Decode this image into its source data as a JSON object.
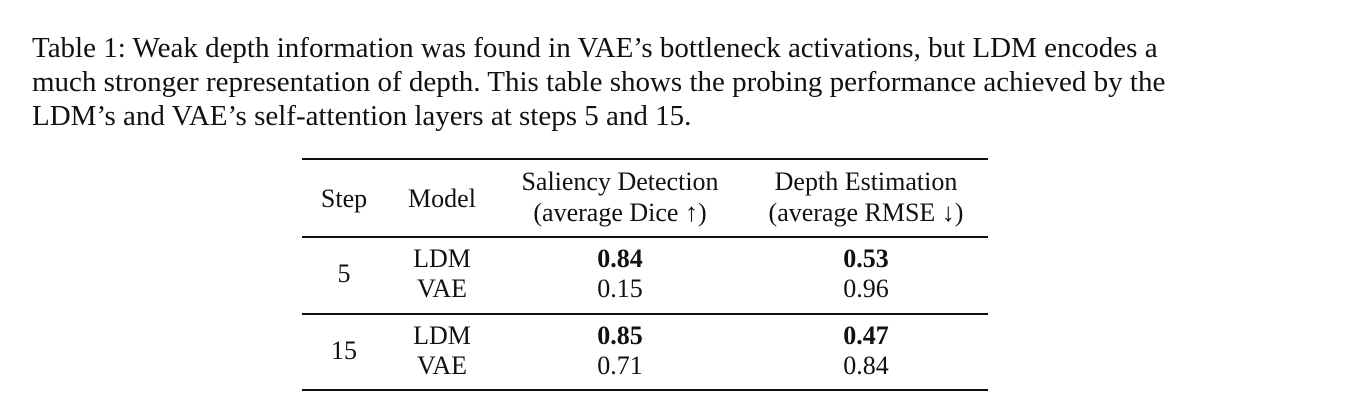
{
  "caption": {
    "lines": [
      "Table 1: Weak depth information was found in VAE’s bottleneck activations, but LDM encodes a",
      "much stronger representation of depth. This table shows the probing performance achieved by the",
      "LDM’s and VAE’s self-attention layers at steps 5 and 15."
    ]
  },
  "table": {
    "headers": {
      "step": "Step",
      "model": "Model",
      "saliency_line1": "Saliency Detection",
      "saliency_line2": "(average Dice ↑)",
      "depth_line1": "Depth Estimation",
      "depth_line2": "(average RMSE ↓)"
    },
    "groups": [
      {
        "step": "5",
        "rows": [
          {
            "model": "LDM",
            "saliency": "0.84",
            "depth": "0.53"
          },
          {
            "model": "VAE",
            "saliency": "0.15",
            "depth": "0.96"
          }
        ]
      },
      {
        "step": "15",
        "rows": [
          {
            "model": "LDM",
            "saliency": "0.85",
            "depth": "0.47"
          },
          {
            "model": "VAE",
            "saliency": "0.71",
            "depth": "0.84"
          }
        ]
      }
    ]
  }
}
